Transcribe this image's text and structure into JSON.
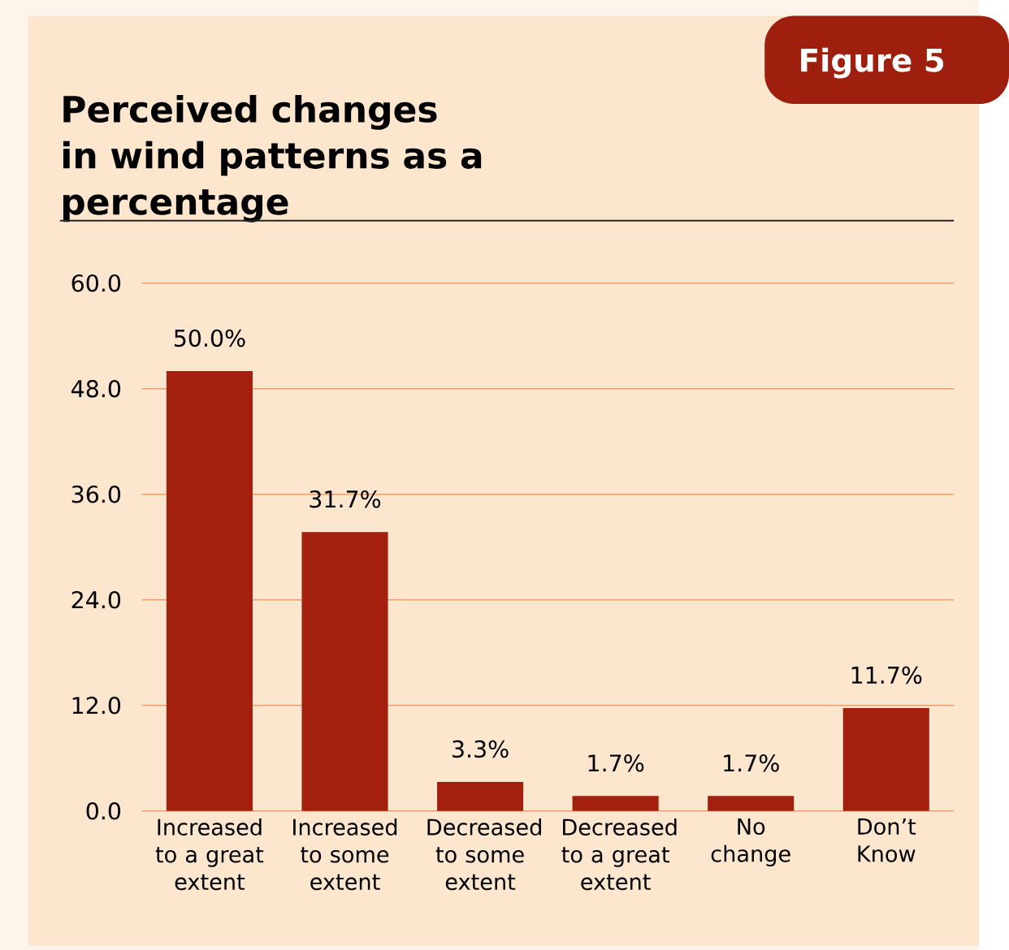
{
  "chart_data": {
    "type": "bar",
    "title": "Perceived changes in wind patterns as a percentage",
    "annotations": [
      "Figure 5"
    ],
    "categories": [
      "Increased to a great extent",
      "Increased to some extent",
      "Decreased to some extent",
      "Decreased to a great extent",
      "No change",
      "Don’t Know"
    ],
    "values": [
      50.0,
      31.7,
      3.3,
      1.7,
      1.7,
      11.7
    ],
    "value_labels": [
      "50.0%",
      "31.7%",
      "3.3%",
      "1.7%",
      "1.7%",
      "11.7%"
    ],
    "color": "#a3200f",
    "ylim": [
      0,
      60
    ],
    "yticks": [
      {
        "value": 0,
        "label": "0.0"
      },
      {
        "value": 12,
        "label": "12.0"
      },
      {
        "value": 24,
        "label": "24.0"
      },
      {
        "value": 36,
        "label": "36.0"
      },
      {
        "value": 48,
        "label": "48.0"
      },
      {
        "value": 60,
        "label": "60.0"
      }
    ],
    "grid": "y"
  }
}
